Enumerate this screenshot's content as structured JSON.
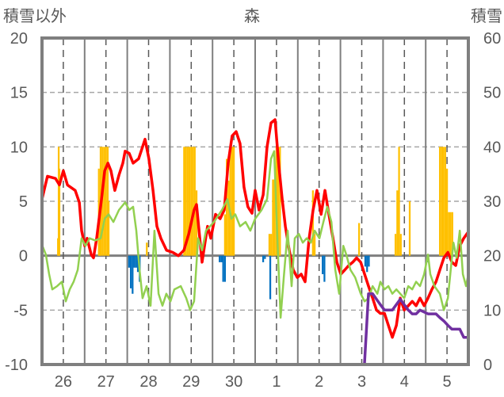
{
  "chart_data": {
    "type": "line",
    "title": "森",
    "ylabel_left": "積雪以外",
    "ylabel_right": "積雪",
    "ylim_left": [
      -10,
      20
    ],
    "ylim_right": [
      0,
      60
    ],
    "yticks_left": [
      "20",
      "15",
      "10",
      "5",
      "0",
      "-5",
      "-10"
    ],
    "yticks_left_values": [
      20,
      15,
      10,
      5,
      0,
      -5,
      -10
    ],
    "yticks_right": [
      "60",
      "50",
      "40",
      "30",
      "20",
      "10",
      "0"
    ],
    "xlim_hours": [
      0,
      240
    ],
    "xtick_labels": [
      "26",
      "27",
      "28",
      "29",
      "30",
      "1",
      "2",
      "3",
      "4",
      "5"
    ],
    "grid": true,
    "colors": {
      "red": "#ff0000",
      "green": "#92d050",
      "purple": "#7030a0",
      "orange": "#ffc000",
      "blue": "#0070c0",
      "axis": "#7f7f7f"
    },
    "series": [
      {
        "name": "red",
        "axis": "left",
        "points": [
          [
            0,
            5.2
          ],
          [
            3.1,
            7.3
          ],
          [
            7.6,
            7.1
          ],
          [
            9.8,
            6.5
          ],
          [
            12,
            7.8
          ],
          [
            14.3,
            6.5
          ],
          [
            18.7,
            6
          ],
          [
            21,
            4.9
          ],
          [
            22.3,
            2.3
          ],
          [
            24.1,
            0.9
          ],
          [
            25.4,
            1.6
          ],
          [
            27.7,
            0.1
          ],
          [
            29,
            -0.2
          ],
          [
            30.8,
            1.6
          ],
          [
            33.5,
            5.2
          ],
          [
            35.3,
            7.8
          ],
          [
            37.1,
            8.5
          ],
          [
            38.8,
            7.8
          ],
          [
            41,
            6
          ],
          [
            43.3,
            7.4
          ],
          [
            45.5,
            8.5
          ],
          [
            46.8,
            9.6
          ],
          [
            49.1,
            9.4
          ],
          [
            51.3,
            8.5
          ],
          [
            54.4,
            8.9
          ],
          [
            55.8,
            9.6
          ],
          [
            58,
            10.7
          ],
          [
            60.2,
            8.9
          ],
          [
            62.5,
            6
          ],
          [
            64.7,
            2.7
          ],
          [
            66.9,
            1.6
          ],
          [
            70.1,
            0.5
          ],
          [
            73.6,
            0.3
          ],
          [
            76.8,
            0
          ],
          [
            79.9,
            0.5
          ],
          [
            82.6,
            2
          ],
          [
            85.6,
            4.2
          ],
          [
            87,
            4.7
          ],
          [
            88.8,
            1.6
          ],
          [
            90.1,
            -0.6
          ],
          [
            91.5,
            0.9
          ],
          [
            93.2,
            2.7
          ],
          [
            95,
            1.6
          ],
          [
            97.7,
            3.8
          ],
          [
            100.3,
            3.4
          ],
          [
            102.6,
            4.2
          ],
          [
            104.8,
            8.5
          ],
          [
            107,
            11
          ],
          [
            109.3,
            11.4
          ],
          [
            111.5,
            10.3
          ],
          [
            113.7,
            6.3
          ],
          [
            115.9,
            4.5
          ],
          [
            118.2,
            3.9
          ],
          [
            120,
            6
          ],
          [
            122.2,
            4.2
          ],
          [
            124.5,
            5.6
          ],
          [
            126.7,
            10
          ],
          [
            128.9,
            12.2
          ],
          [
            131.2,
            12.5
          ],
          [
            133.4,
            8.2
          ],
          [
            135.2,
            5.2
          ],
          [
            137,
            2.7
          ],
          [
            139.2,
            0.5
          ],
          [
            141.4,
            -1.3
          ],
          [
            143.7,
            -2
          ],
          [
            145.9,
            -1.7
          ],
          [
            148.1,
            -2.4
          ],
          [
            150.4,
            1.6
          ],
          [
            152.6,
            4.2
          ],
          [
            154.8,
            6
          ],
          [
            157.1,
            3.8
          ],
          [
            159.3,
            6
          ],
          [
            161.5,
            3.8
          ],
          [
            163.8,
            1.6
          ],
          [
            166,
            -0.6
          ],
          [
            168.2,
            -1.7
          ],
          [
            170.5,
            -1.3
          ],
          [
            172.7,
            -0.9
          ],
          [
            174.9,
            -0.6
          ],
          [
            177.1,
            -0.2
          ],
          [
            179.4,
            -0.6
          ],
          [
            181.6,
            -1.7
          ],
          [
            183.8,
            -2.8
          ],
          [
            186.1,
            -3.9
          ],
          [
            188.3,
            -5
          ],
          [
            190.5,
            -5.3
          ],
          [
            192.8,
            -5.3
          ],
          [
            195,
            -6.4
          ],
          [
            197.2,
            -7.5
          ],
          [
            199.5,
            -6.4
          ],
          [
            201.7,
            -3.9
          ],
          [
            203.9,
            -5
          ],
          [
            206.2,
            -4.6
          ],
          [
            208.4,
            -4.2
          ],
          [
            210.6,
            -4.6
          ],
          [
            212.8,
            -3.9
          ],
          [
            215.1,
            -4.6
          ],
          [
            217.3,
            -3.9
          ],
          [
            219.5,
            -3.1
          ],
          [
            221.8,
            -2.4
          ],
          [
            224,
            -1.3
          ],
          [
            226.2,
            -0.2
          ],
          [
            228.5,
            0.3
          ],
          [
            230.7,
            -0.6
          ],
          [
            232.9,
            -0.9
          ],
          [
            235.2,
            0.9
          ],
          [
            237.4,
            1.6
          ],
          [
            240,
            2.2
          ]
        ]
      },
      {
        "name": "green",
        "axis": "left",
        "points": [
          [
            0,
            1
          ],
          [
            2.2,
            0.1
          ],
          [
            4,
            -1.7
          ],
          [
            5.8,
            -3.1
          ],
          [
            8.5,
            -2.8
          ],
          [
            11.2,
            -2.4
          ],
          [
            13.4,
            -4.2
          ],
          [
            15.6,
            -3.1
          ],
          [
            17.8,
            -2.4
          ],
          [
            20.1,
            -1.3
          ],
          [
            22.3,
            1.6
          ],
          [
            24.5,
            0.9
          ],
          [
            26.8,
            1.6
          ],
          [
            29.9,
            1.4
          ],
          [
            33,
            1.6
          ],
          [
            35.3,
            3.4
          ],
          [
            37.5,
            3.8
          ],
          [
            40.2,
            3.1
          ],
          [
            43.3,
            4.2
          ],
          [
            46.8,
            4.9
          ],
          [
            49.1,
            4.2
          ],
          [
            51.3,
            4.5
          ],
          [
            53.1,
            2.3
          ],
          [
            54.9,
            -1.3
          ],
          [
            56.6,
            -3.9
          ],
          [
            58.9,
            -2.8
          ],
          [
            61.1,
            -4.6
          ],
          [
            63.3,
            2.3
          ],
          [
            65.6,
            -3.5
          ],
          [
            67.8,
            -4.6
          ],
          [
            70,
            -3.5
          ],
          [
            72.3,
            -4.2
          ],
          [
            74.5,
            -3.1
          ],
          [
            78.1,
            -2.8
          ],
          [
            81.2,
            -3.9
          ],
          [
            83.4,
            -5
          ],
          [
            85.6,
            -4.2
          ],
          [
            87.9,
            1.6
          ],
          [
            90.1,
            0.5
          ],
          [
            92.3,
            2.3
          ],
          [
            94.6,
            2.7
          ],
          [
            96.8,
            3.1
          ],
          [
            101.3,
            4.2
          ],
          [
            104.4,
            5.2
          ],
          [
            106.6,
            3.4
          ],
          [
            108.8,
            3.8
          ],
          [
            111.5,
            2.7
          ],
          [
            114.6,
            3.1
          ],
          [
            117.3,
            2.3
          ],
          [
            120,
            3.4
          ],
          [
            123.6,
            4.2
          ],
          [
            126.7,
            5.2
          ],
          [
            128.9,
            8.9
          ],
          [
            130.7,
            9.6
          ],
          [
            132.5,
            1.6
          ],
          [
            134.3,
            -5.7
          ],
          [
            136.1,
            -2
          ],
          [
            138.3,
            2.3
          ],
          [
            140.5,
            -2.8
          ],
          [
            142.3,
            1.6
          ],
          [
            144.6,
            2
          ],
          [
            146.8,
            1.2
          ],
          [
            149,
            1.6
          ],
          [
            151.3,
            1.2
          ],
          [
            153.5,
            2.3
          ],
          [
            156.2,
            1.6
          ],
          [
            158.4,
            3.1
          ],
          [
            160.6,
            4.5
          ],
          [
            162.9,
            3.1
          ],
          [
            165.1,
            -1.3
          ],
          [
            167.3,
            -3.5
          ],
          [
            169.6,
            0.9
          ],
          [
            171.3,
            0.1
          ],
          [
            173.6,
            -1.3
          ],
          [
            176.3,
            -2
          ],
          [
            179.4,
            -3.5
          ],
          [
            181.6,
            -4.2
          ],
          [
            183.8,
            -3.9
          ],
          [
            186.1,
            -2.8
          ],
          [
            188.8,
            -3.5
          ],
          [
            190.5,
            -2.4
          ],
          [
            192.8,
            -3.1
          ],
          [
            195,
            -2.8
          ],
          [
            197.2,
            -3.5
          ],
          [
            199.5,
            -3.1
          ],
          [
            201.7,
            -3.5
          ],
          [
            203.9,
            -3.9
          ],
          [
            206.2,
            -2.8
          ],
          [
            208.4,
            -3.1
          ],
          [
            210.6,
            -2.4
          ],
          [
            212.8,
            -2.8
          ],
          [
            215.1,
            -1.7
          ],
          [
            217.3,
            0.1
          ],
          [
            218.6,
            -1.7
          ],
          [
            220.9,
            -2.8
          ],
          [
            224,
            -3.5
          ],
          [
            226.2,
            -5
          ],
          [
            228.5,
            -3.9
          ],
          [
            231.6,
            1.2
          ],
          [
            233.4,
            -0.2
          ],
          [
            235.2,
            2.3
          ],
          [
            236.9,
            -1.7
          ],
          [
            238.7,
            -2.8
          ],
          [
            240,
            -1.7
          ]
        ]
      },
      {
        "name": "purple",
        "axis": "right",
        "points": [
          [
            0,
            0
          ],
          [
            181.5,
            0
          ],
          [
            183.8,
            13
          ],
          [
            186.1,
            13
          ],
          [
            188.3,
            12
          ],
          [
            190.5,
            11
          ],
          [
            192.8,
            10
          ],
          [
            197.2,
            10
          ],
          [
            201.7,
            12
          ],
          [
            203.9,
            11
          ],
          [
            206.2,
            10
          ],
          [
            208.4,
            9.3
          ],
          [
            210.6,
            9.3
          ],
          [
            212.8,
            10
          ],
          [
            217.3,
            9.3
          ],
          [
            221.8,
            9.3
          ],
          [
            224,
            8.6
          ],
          [
            226.2,
            8
          ],
          [
            228.5,
            7.2
          ],
          [
            230.7,
            6.5
          ],
          [
            235.2,
            6.5
          ],
          [
            237.4,
            5
          ],
          [
            240,
            5
          ]
        ]
      }
    ],
    "bars": [
      {
        "name": "orange",
        "axis": "left",
        "points": [
          [
            9,
            1.6
          ],
          [
            9.4,
            10
          ],
          [
            9.8,
            8
          ],
          [
            32,
            8
          ],
          [
            32.5,
            1.6
          ],
          [
            33,
            10
          ],
          [
            34,
            10
          ],
          [
            35,
            10
          ],
          [
            36,
            10
          ],
          [
            37,
            10
          ],
          [
            37.5,
            5
          ],
          [
            59,
            1.2
          ],
          [
            80,
            10
          ],
          [
            81,
            10
          ],
          [
            82,
            10
          ],
          [
            83,
            10
          ],
          [
            84,
            10
          ],
          [
            85,
            10
          ],
          [
            86,
            10
          ],
          [
            87,
            6
          ],
          [
            103,
            3.8
          ],
          [
            104,
            8.9
          ],
          [
            105,
            6.9
          ],
          [
            106,
            10
          ],
          [
            107,
            10
          ],
          [
            108,
            10
          ],
          [
            128,
            2
          ],
          [
            129,
            2
          ],
          [
            130,
            7
          ],
          [
            131,
            7
          ],
          [
            132,
            10
          ],
          [
            133,
            10
          ],
          [
            134,
            10
          ],
          [
            152.5,
            6
          ],
          [
            153.5,
            2
          ],
          [
            178.5,
            3
          ],
          [
            199,
            2
          ],
          [
            200,
            6
          ],
          [
            201,
            10
          ],
          [
            202,
            2
          ],
          [
            207,
            5
          ],
          [
            224,
            10
          ],
          [
            225,
            10
          ],
          [
            226,
            10
          ],
          [
            227,
            10
          ],
          [
            228,
            8
          ],
          [
            229,
            4
          ],
          [
            230,
            4
          ],
          [
            231,
            4
          ]
        ]
      },
      {
        "name": "blue",
        "axis": "left",
        "points": [
          [
            49,
            -1.1
          ],
          [
            50,
            -3
          ],
          [
            51,
            -3.5
          ],
          [
            52,
            -1.1
          ],
          [
            53,
            -1.1
          ],
          [
            54,
            -1.5
          ],
          [
            55,
            -2.4
          ],
          [
            100,
            -0.6
          ],
          [
            101,
            -0.6
          ],
          [
            102,
            -2.4
          ],
          [
            103,
            -2.4
          ],
          [
            124.5,
            -0.6
          ],
          [
            125.5,
            -0.3
          ],
          [
            128.5,
            -4
          ],
          [
            158,
            -1.7
          ],
          [
            159,
            -2.4
          ],
          [
            182,
            -1
          ],
          [
            183,
            -1.5
          ],
          [
            184,
            -1
          ],
          [
            217,
            -0.6
          ]
        ]
      }
    ]
  }
}
